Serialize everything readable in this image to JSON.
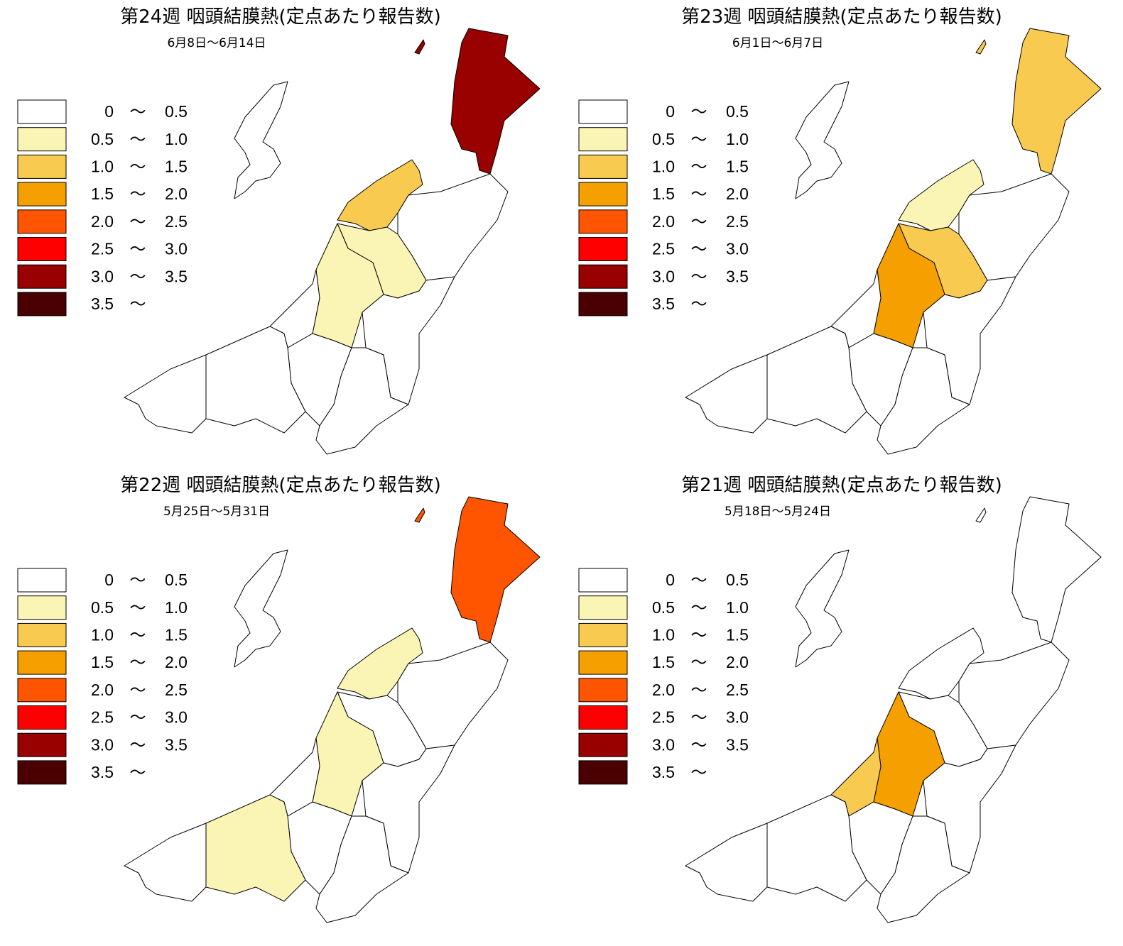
{
  "legend": {
    "separator": "～",
    "classes": [
      {
        "from": "0",
        "to": "0.5",
        "color": "#ffffff"
      },
      {
        "from": "0.5",
        "to": "1.0",
        "color": "#faf5b4"
      },
      {
        "from": "1.0",
        "to": "1.5",
        "color": "#f8ca50"
      },
      {
        "from": "1.5",
        "to": "2.0",
        "color": "#f5a000"
      },
      {
        "from": "2.0",
        "to": "2.5",
        "color": "#ff5500"
      },
      {
        "from": "2.5",
        "to": "3.0",
        "color": "#ff0000"
      },
      {
        "from": "3.0",
        "to": "3.5",
        "color": "#990000"
      },
      {
        "from": "3.5",
        "color": "#4a0000"
      }
    ]
  },
  "panels": [
    {
      "title": "第24週 咽頭結膜熱(定点あたり報告数)",
      "date": "6月8日～6月14日",
      "region_colors": [
        "#990000",
        "#f8ca50",
        "#ffffff",
        "#faf5b4",
        "#faf5b4",
        "#ffffff",
        "#ffffff",
        "#ffffff",
        "#ffffff",
        "#ffffff",
        "#ffffff",
        "#990000",
        "#ffffff"
      ]
    },
    {
      "title": "第23週 咽頭結膜熱(定点あたり報告数)",
      "date": "6月1日～6月7日",
      "region_colors": [
        "#f8ca50",
        "#faf5b4",
        "#ffffff",
        "#f8ca50",
        "#f5a000",
        "#ffffff",
        "#ffffff",
        "#ffffff",
        "#ffffff",
        "#ffffff",
        "#ffffff",
        "#f8ca50",
        "#ffffff"
      ]
    },
    {
      "title": "第22週 咽頭結膜熱(定点あたり報告数)",
      "date": "5月25日～5月31日",
      "region_colors": [
        "#ff5500",
        "#faf5b4",
        "#ffffff",
        "#ffffff",
        "#faf5b4",
        "#ffffff",
        "#ffffff",
        "#ffffff",
        "#ffffff",
        "#faf5b4",
        "#ffffff",
        "#ff5500",
        "#ffffff"
      ]
    },
    {
      "title": "第21週 咽頭結膜熱(定点あたり報告数)",
      "date": "5月18日～5月24日",
      "region_colors": [
        "#ffffff",
        "#ffffff",
        "#ffffff",
        "#ffffff",
        "#f5a000",
        "#f8ca50",
        "#ffffff",
        "#ffffff",
        "#ffffff",
        "#ffffff",
        "#ffffff",
        "#ffffff",
        "#ffffff"
      ]
    }
  ]
}
